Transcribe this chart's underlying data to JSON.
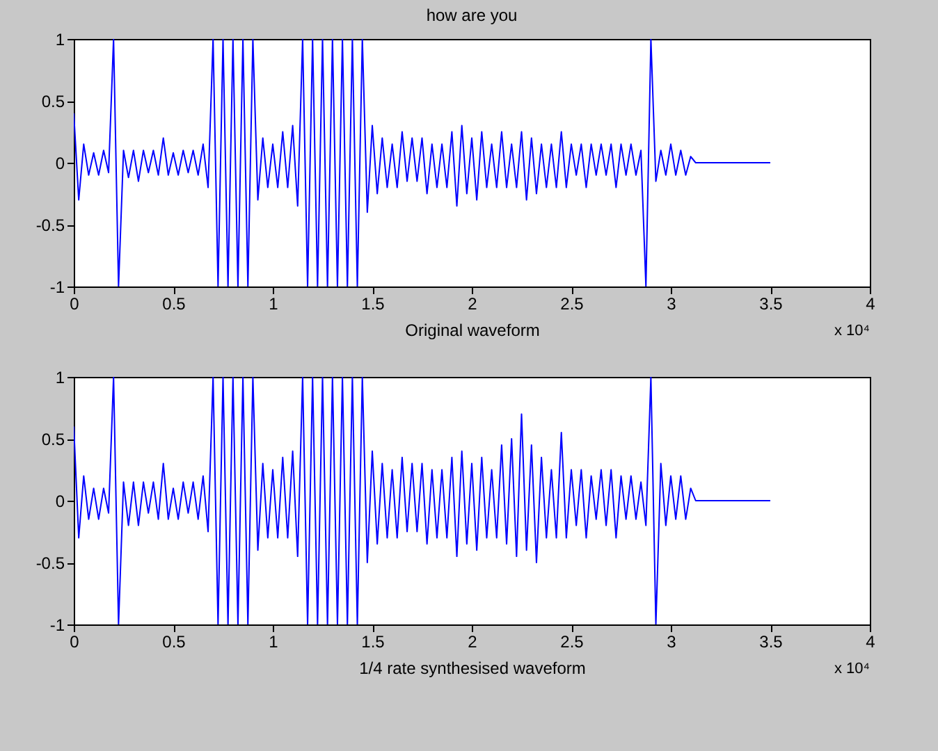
{
  "chart_data": [
    {
      "type": "line",
      "title": "how are you",
      "xlabel": "Original waveform",
      "annotations": [
        "x 10⁴"
      ],
      "xlim": [
        0,
        4
      ],
      "ylim": [
        -1,
        1
      ],
      "xticks": [
        0,
        0.5,
        1,
        1.5,
        2,
        2.5,
        3,
        3.5,
        4
      ],
      "yticks": [
        -1,
        -0.5,
        0,
        0.5,
        1
      ],
      "grid": false,
      "marker": "none",
      "line_style": "solid",
      "x": [
        0,
        0.025,
        0.05,
        0.075,
        0.1,
        0.125,
        0.15,
        0.175,
        0.2,
        0.225,
        0.25,
        0.275,
        0.3,
        0.325,
        0.35,
        0.375,
        0.4,
        0.425,
        0.45,
        0.475,
        0.5,
        0.525,
        0.55,
        0.575,
        0.6,
        0.625,
        0.65,
        0.675,
        0.7,
        0.725,
        0.75,
        0.775,
        0.8,
        0.825,
        0.85,
        0.875,
        0.9,
        0.925,
        0.95,
        0.975,
        1,
        1.025,
        1.05,
        1.075,
        1.1,
        1.125,
        1.15,
        1.175,
        1.2,
        1.225,
        1.25,
        1.275,
        1.3,
        1.325,
        1.35,
        1.375,
        1.4,
        1.425,
        1.45,
        1.475,
        1.5,
        1.525,
        1.55,
        1.575,
        1.6,
        1.625,
        1.65,
        1.675,
        1.7,
        1.725,
        1.75,
        1.775,
        1.8,
        1.825,
        1.85,
        1.875,
        1.9,
        1.925,
        1.95,
        1.975,
        2,
        2.025,
        2.05,
        2.075,
        2.1,
        2.125,
        2.15,
        2.175,
        2.2,
        2.225,
        2.25,
        2.275,
        2.3,
        2.325,
        2.35,
        2.375,
        2.4,
        2.425,
        2.45,
        2.475,
        2.5,
        2.525,
        2.55,
        2.575,
        2.6,
        2.625,
        2.65,
        2.675,
        2.7,
        2.725,
        2.75,
        2.775,
        2.8,
        2.825,
        2.85,
        2.875,
        2.9,
        2.925,
        2.95,
        2.975,
        3,
        3.025,
        3.05,
        3.075,
        3.1,
        3.125,
        3.5
      ],
      "series": [
        {
          "color": "#0000ff",
          "values": [
            0.4,
            -0.3,
            0.15,
            -0.1,
            0.08,
            -0.1,
            0.1,
            -0.08,
            1,
            -1,
            0.1,
            -0.12,
            0.1,
            -0.15,
            0.1,
            -0.08,
            0.1,
            -0.1,
            0.2,
            -0.1,
            0.08,
            -0.1,
            0.1,
            -0.08,
            0.1,
            -0.1,
            0.15,
            -0.2,
            1,
            -1,
            1,
            -1,
            1,
            -1,
            1,
            -1,
            1,
            -0.3,
            0.2,
            -0.2,
            0.15,
            -0.2,
            0.25,
            -0.2,
            0.3,
            -0.35,
            1,
            -1,
            1,
            -1,
            1,
            -1,
            1,
            -1,
            1,
            -1,
            1,
            -1,
            1,
            -0.4,
            0.3,
            -0.25,
            0.2,
            -0.2,
            0.15,
            -0.2,
            0.25,
            -0.15,
            0.2,
            -0.15,
            0.2,
            -0.25,
            0.15,
            -0.2,
            0.15,
            -0.2,
            0.25,
            -0.35,
            0.3,
            -0.25,
            0.2,
            -0.3,
            0.25,
            -0.2,
            0.15,
            -0.2,
            0.25,
            -0.2,
            0.15,
            -0.2,
            0.25,
            -0.3,
            0.2,
            -0.25,
            0.15,
            -0.2,
            0.15,
            -0.2,
            0.25,
            -0.2,
            0.15,
            -0.1,
            0.15,
            -0.2,
            0.15,
            -0.1,
            0.15,
            -0.1,
            0.15,
            -0.2,
            0.15,
            -0.1,
            0.15,
            -0.1,
            0.1,
            -1,
            1,
            -0.15,
            0.1,
            -0.1,
            0.15,
            -0.1,
            0.1,
            -0.1,
            0.05,
            0,
            0
          ]
        }
      ]
    },
    {
      "type": "line",
      "xlabel": "1/4 rate synthesised waveform",
      "annotations": [
        "x 10⁴"
      ],
      "xlim": [
        0,
        4
      ],
      "ylim": [
        -1,
        1
      ],
      "xticks": [
        0,
        0.5,
        1,
        1.5,
        2,
        2.5,
        3,
        3.5,
        4
      ],
      "yticks": [
        -1,
        -0.5,
        0,
        0.5,
        1
      ],
      "grid": false,
      "marker": "none",
      "line_style": "solid",
      "x": [
        0,
        0.025,
        0.05,
        0.075,
        0.1,
        0.125,
        0.15,
        0.175,
        0.2,
        0.225,
        0.25,
        0.275,
        0.3,
        0.325,
        0.35,
        0.375,
        0.4,
        0.425,
        0.45,
        0.475,
        0.5,
        0.525,
        0.55,
        0.575,
        0.6,
        0.625,
        0.65,
        0.675,
        0.7,
        0.725,
        0.75,
        0.775,
        0.8,
        0.825,
        0.85,
        0.875,
        0.9,
        0.925,
        0.95,
        0.975,
        1,
        1.025,
        1.05,
        1.075,
        1.1,
        1.125,
        1.15,
        1.175,
        1.2,
        1.225,
        1.25,
        1.275,
        1.3,
        1.325,
        1.35,
        1.375,
        1.4,
        1.425,
        1.45,
        1.475,
        1.5,
        1.525,
        1.55,
        1.575,
        1.6,
        1.625,
        1.65,
        1.675,
        1.7,
        1.725,
        1.75,
        1.775,
        1.8,
        1.825,
        1.85,
        1.875,
        1.9,
        1.925,
        1.95,
        1.975,
        2,
        2.025,
        2.05,
        2.075,
        2.1,
        2.125,
        2.15,
        2.175,
        2.2,
        2.225,
        2.25,
        2.275,
        2.3,
        2.325,
        2.35,
        2.375,
        2.4,
        2.425,
        2.45,
        2.475,
        2.5,
        2.525,
        2.55,
        2.575,
        2.6,
        2.625,
        2.65,
        2.675,
        2.7,
        2.725,
        2.75,
        2.775,
        2.8,
        2.825,
        2.85,
        2.875,
        2.9,
        2.925,
        2.95,
        2.975,
        3,
        3.025,
        3.05,
        3.075,
        3.1,
        3.125,
        3.5
      ],
      "series": [
        {
          "color": "#0000ff",
          "values": [
            0.6,
            -0.3,
            0.2,
            -0.15,
            0.1,
            -0.15,
            0.1,
            -0.1,
            1,
            -1,
            0.15,
            -0.2,
            0.15,
            -0.2,
            0.15,
            -0.1,
            0.15,
            -0.15,
            0.3,
            -0.15,
            0.1,
            -0.15,
            0.15,
            -0.1,
            0.15,
            -0.15,
            0.2,
            -0.25,
            1,
            -1,
            1,
            -1,
            1,
            -1,
            1,
            -1,
            1,
            -0.4,
            0.3,
            -0.3,
            0.25,
            -0.3,
            0.35,
            -0.3,
            0.4,
            -0.45,
            1,
            -1,
            1,
            -1,
            1,
            -1,
            1,
            -1,
            1,
            -1,
            1,
            -1,
            1,
            -0.5,
            0.4,
            -0.35,
            0.3,
            -0.3,
            0.25,
            -0.3,
            0.35,
            -0.25,
            0.3,
            -0.25,
            0.3,
            -0.35,
            0.25,
            -0.3,
            0.25,
            -0.3,
            0.35,
            -0.45,
            0.4,
            -0.35,
            0.3,
            -0.4,
            0.35,
            -0.3,
            0.25,
            -0.3,
            0.45,
            -0.35,
            0.5,
            -0.45,
            0.7,
            -0.4,
            0.45,
            -0.5,
            0.35,
            -0.3,
            0.25,
            -0.3,
            0.55,
            -0.3,
            0.25,
            -0.2,
            0.25,
            -0.3,
            0.2,
            -0.15,
            0.25,
            -0.2,
            0.25,
            -0.3,
            0.2,
            -0.15,
            0.2,
            -0.15,
            0.15,
            -0.2,
            1,
            -1,
            0.3,
            -0.2,
            0.2,
            -0.15,
            0.2,
            -0.15,
            0.1,
            0,
            0
          ]
        }
      ]
    }
  ]
}
